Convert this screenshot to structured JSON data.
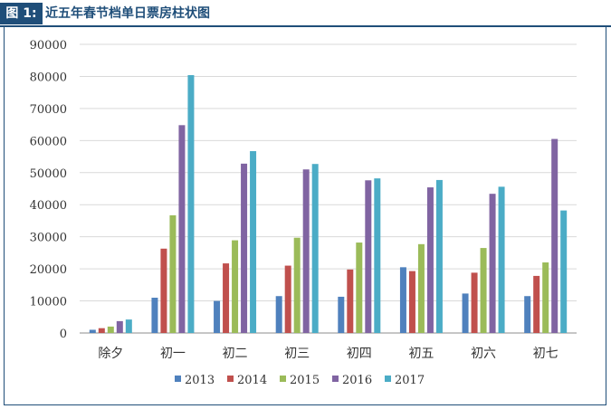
{
  "figure": {
    "label": "图 1:",
    "title": "近五年春节档单日票房柱状图"
  },
  "chart_data": {
    "type": "bar",
    "categories": [
      "除夕",
      "初一",
      "初二",
      "初三",
      "初四",
      "初五",
      "初六",
      "初七"
    ],
    "series": [
      {
        "name": "2013",
        "color": "#4f81bd",
        "values": [
          1000,
          11000,
          10000,
          11500,
          11300,
          20500,
          12300,
          11500
        ]
      },
      {
        "name": "2014",
        "color": "#c0504d",
        "values": [
          1500,
          26300,
          21700,
          21000,
          19800,
          19300,
          18800,
          17800
        ]
      },
      {
        "name": "2015",
        "color": "#9bbb59",
        "values": [
          2000,
          36700,
          28900,
          29700,
          28200,
          27700,
          26500,
          22000
        ]
      },
      {
        "name": "2016",
        "color": "#8064a2",
        "values": [
          3700,
          64800,
          52800,
          51000,
          47600,
          45400,
          43400,
          60500
        ]
      },
      {
        "name": "2017",
        "color": "#4bacc6",
        "values": [
          4200,
          80400,
          56700,
          52700,
          48200,
          47700,
          45600,
          38200
        ]
      }
    ],
    "ylim": [
      0,
      90000
    ],
    "yticks": [
      0,
      10000,
      20000,
      30000,
      40000,
      50000,
      60000,
      70000,
      80000,
      90000
    ],
    "grid": true,
    "legend_position": "bottom"
  }
}
